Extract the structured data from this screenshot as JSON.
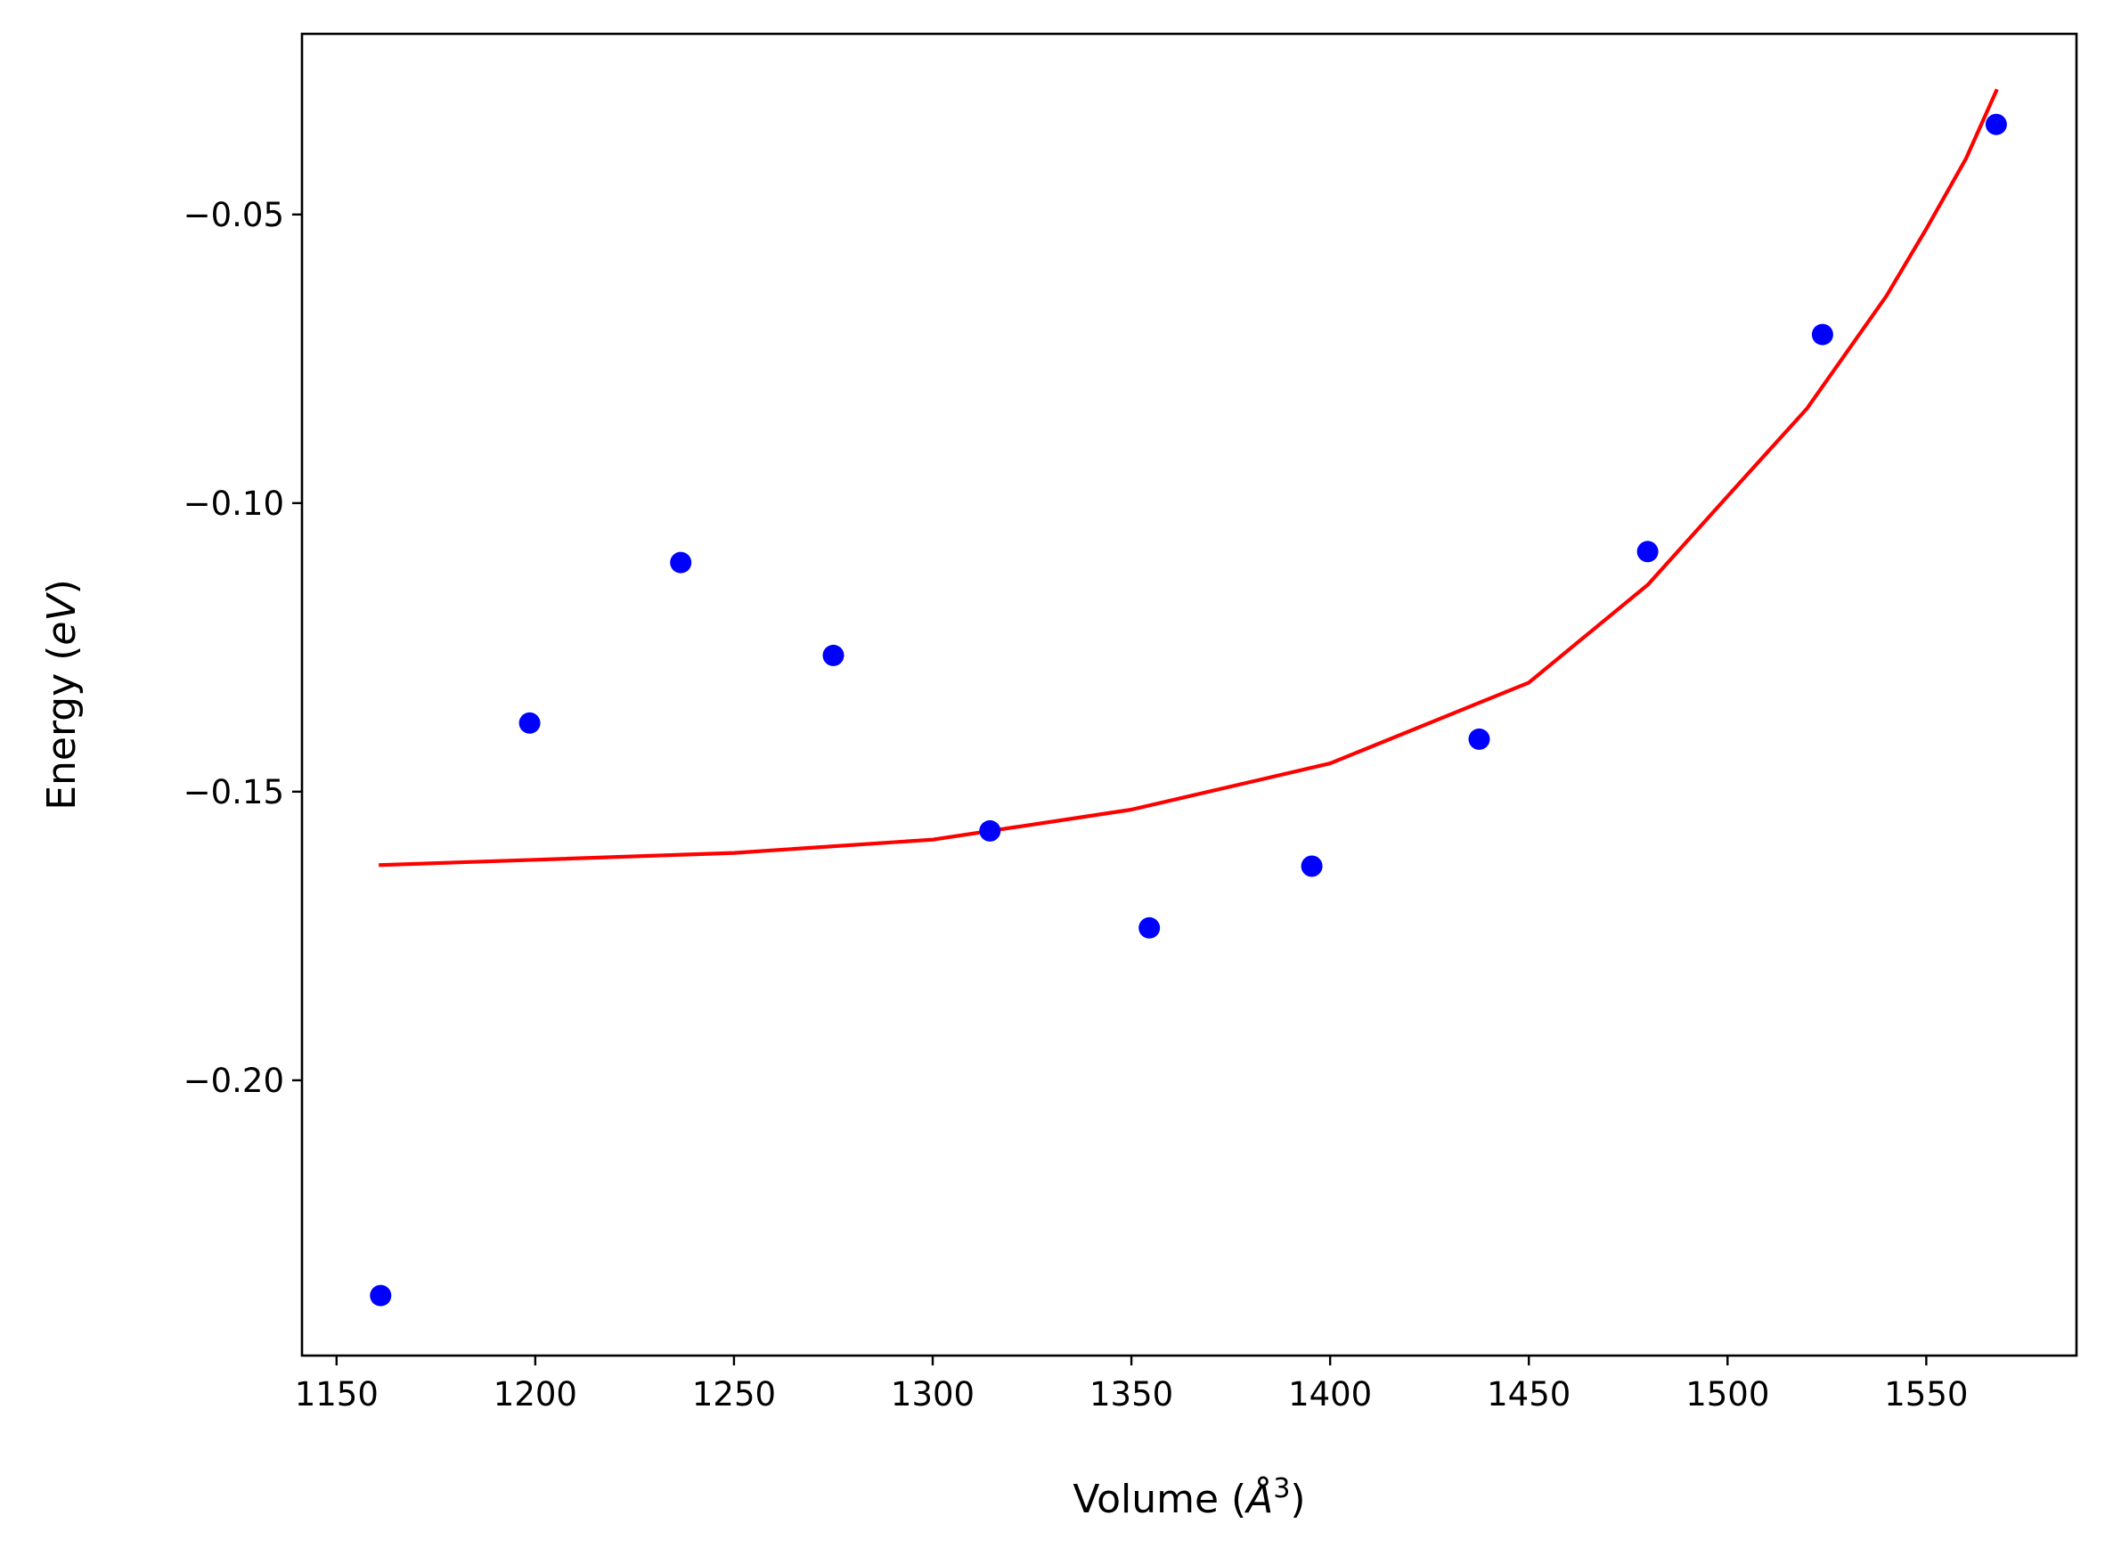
{
  "chart_data": {
    "type": "scatter",
    "xlabel": {
      "main": "Volume (",
      "italic": "Å",
      "sup": "3",
      "close": ")"
    },
    "ylabel": {
      "main": "Energy (",
      "italic": "eV",
      "close": ")"
    },
    "xlim": [
      1141.3,
      1587.8
    ],
    "ylim": [
      -0.2477,
      -0.0187
    ],
    "x_ticks": [
      {
        "value": 1150,
        "label": "1150"
      },
      {
        "value": 1200,
        "label": "1200"
      },
      {
        "value": 1250,
        "label": "1250"
      },
      {
        "value": 1300,
        "label": "1300"
      },
      {
        "value": 1350,
        "label": "1350"
      },
      {
        "value": 1400,
        "label": "1400"
      },
      {
        "value": 1450,
        "label": "1450"
      },
      {
        "value": 1500,
        "label": "1500"
      },
      {
        "value": 1550,
        "label": "1550"
      }
    ],
    "y_ticks": [
      {
        "value": -0.05,
        "label": "−0.05"
      },
      {
        "value": -0.1,
        "label": "−0.10"
      },
      {
        "value": -0.15,
        "label": "−0.15"
      },
      {
        "value": -0.2,
        "label": "−0.20"
      }
    ],
    "grid": false,
    "legend": "none",
    "series": [
      {
        "kind": "points",
        "color": "#0000ff",
        "x": [
          1161.1,
          1198.6,
          1236.6,
          1275.0,
          1314.4,
          1354.5,
          1395.4,
          1437.5,
          1479.9,
          1523.9,
          1567.6
        ],
        "y": [
          -0.2373,
          -0.1381,
          -0.1103,
          -0.1264,
          -0.1568,
          -0.1736,
          -0.1629,
          -0.1409,
          -0.1084,
          -0.0708,
          -0.0344
        ]
      },
      {
        "kind": "line",
        "color": "#ff0000",
        "x": [
          1161.1,
          1200,
          1250,
          1300,
          1350,
          1400,
          1450,
          1480,
          1500,
          1520,
          1540,
          1550,
          1560,
          1567.6
        ],
        "y": [
          -0.1627,
          -0.1618,
          -0.1606,
          -0.1583,
          -0.1531,
          -0.1451,
          -0.1311,
          -0.1141,
          -0.0988,
          -0.0836,
          -0.0641,
          -0.0525,
          -0.0403,
          -0.0286
        ]
      }
    ]
  }
}
